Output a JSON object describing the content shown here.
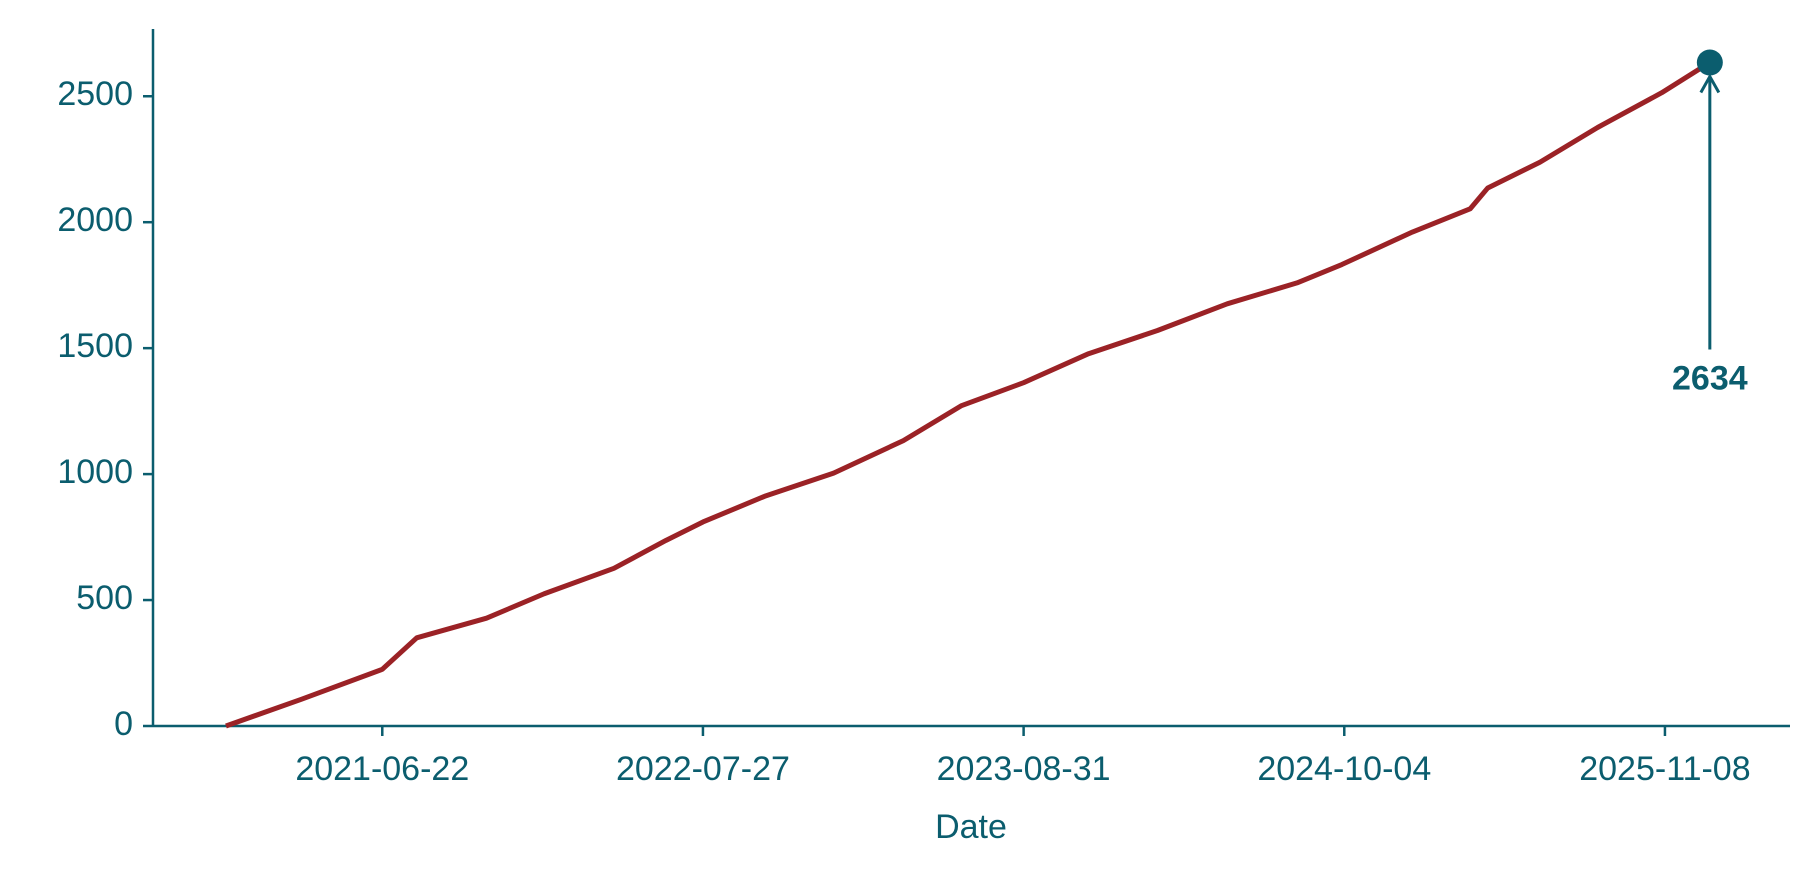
{
  "chart_data": {
    "type": "line",
    "xlabel": "Date",
    "x": [
      "2020-12-09",
      "2021-03-13",
      "2021-06-22",
      "2021-08-04",
      "2021-10-30",
      "2022-01-10",
      "2022-04-07",
      "2022-06-11",
      "2022-07-27",
      "2022-10-12",
      "2023-01-06",
      "2023-04-03",
      "2023-06-14",
      "2023-08-31",
      "2023-11-20",
      "2024-02-14",
      "2024-05-11",
      "2024-08-06",
      "2024-10-01",
      "2024-12-28",
      "2025-03-10",
      "2025-04-01",
      "2025-06-05",
      "2025-08-16",
      "2025-11-04",
      "2026-01-03"
    ],
    "values": [
      0,
      106,
      225,
      350,
      428,
      525,
      626,
      737,
      810,
      912,
      1004,
      1133,
      1271,
      1363,
      1478,
      1570,
      1676,
      1759,
      1832,
      1961,
      2053,
      2136,
      2238,
      2376,
      2514,
      2634
    ],
    "color": "#9b2226",
    "axis_color": "#0b5d6e",
    "xlim": [
      "2020-09-09",
      "2026-04-13"
    ],
    "xticks": [
      "2021-06-22",
      "2022-07-27",
      "2023-08-31",
      "2024-10-04",
      "2025-11-08"
    ],
    "ylim": [
      0,
      2767
    ],
    "yticks": [
      0,
      500,
      1000,
      1500,
      2000,
      2500
    ],
    "grid": false
  }
}
